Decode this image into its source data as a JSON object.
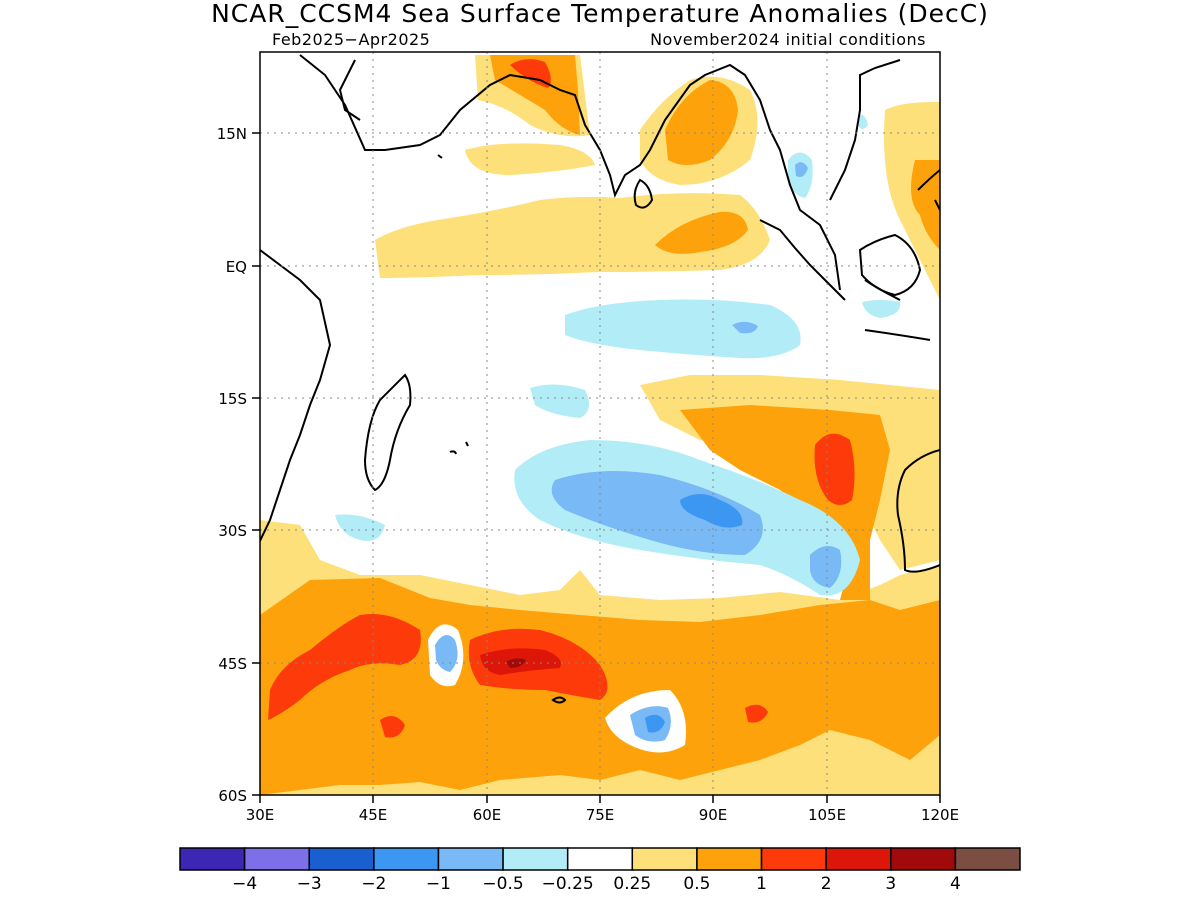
{
  "title": "NCAR_CCSM4 Sea Surface Temperature Anomalies (DecC)",
  "subtitle_left": "Feb2025−Apr2025",
  "subtitle_right": "November2024 initial conditions",
  "y_ticks": [
    "15N",
    "EQ",
    "15S",
    "30S",
    "45S",
    "60S"
  ],
  "x_ticks": [
    "30E",
    "45E",
    "60E",
    "75E",
    "90E",
    "105E",
    "120E"
  ],
  "colorbar": {
    "colors": [
      "#3c26b4",
      "#7c6fe8",
      "#1a5fd0",
      "#3c97f2",
      "#78b9f6",
      "#b2edf7",
      "#ffffff",
      "#fde07a",
      "#fda20a",
      "#fd3a0a",
      "#dc1608",
      "#a00a0a",
      "#7a4e42"
    ],
    "labels": [
      "−4",
      "−3",
      "−2",
      "−1",
      "−0.5",
      "−0.25",
      "0.25",
      "0.5",
      "1",
      "2",
      "3",
      "4"
    ]
  },
  "legend_colors": {
    "pale_yellow": "#fde07a",
    "orange": "#fda20a",
    "red_orange": "#fd3a0a",
    "red": "#dc1608",
    "dark_red": "#a00a0a",
    "light_cyan": "#b2edf7",
    "light_blue": "#78b9f6",
    "blue": "#3c97f2"
  }
}
